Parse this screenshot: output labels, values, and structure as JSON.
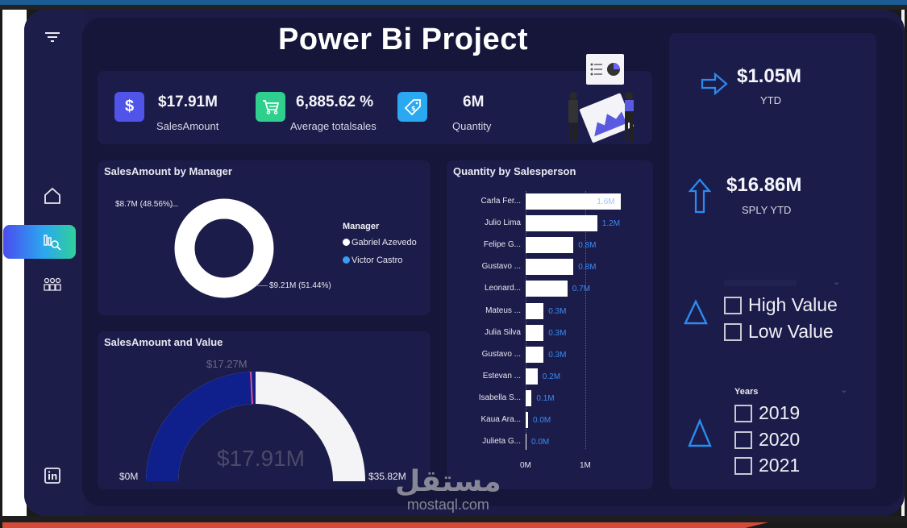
{
  "page": {
    "title": "Power Bi Project"
  },
  "colors": {
    "background": "#16163a",
    "card": "#1c1c4a",
    "accent_blue": "#3b8cf0",
    "donut_blue": "#3a9cf5",
    "gauge_navy": "#0f1f8c",
    "kpi_purple": "#5054e8",
    "kpi_green": "#2fcf8e",
    "kpi_cyan": "#2aa8f2"
  },
  "sidebar": {
    "items": [
      {
        "name": "filter",
        "icon": "filter-icon"
      },
      {
        "name": "home",
        "icon": "home-icon"
      },
      {
        "name": "analytics",
        "icon": "chart-search-icon",
        "active": true
      },
      {
        "name": "team",
        "icon": "users-icon"
      },
      {
        "name": "linkedin",
        "icon": "linkedin-icon"
      }
    ]
  },
  "kpis": [
    {
      "value": "$17.91M",
      "label": "SalesAmount",
      "icon": "dollar-icon"
    },
    {
      "value": "6,885.62 %",
      "label": "Average totalsales",
      "icon": "cart-icon"
    },
    {
      "value": "6M",
      "label": "Quantity",
      "icon": "price-tag-icon"
    }
  ],
  "side_kpis": [
    {
      "value": "$1.05M",
      "label": "YTD",
      "icon": "arrow-right-icon"
    },
    {
      "value": "$16.86M",
      "label": "SPLY YTD",
      "icon": "arrow-up-icon"
    }
  ],
  "value_slicer": {
    "options": [
      "High Value",
      "Low Value"
    ]
  },
  "years_slicer": {
    "title": "Years",
    "options": [
      "2019",
      "2020",
      "2021"
    ]
  },
  "donut": {
    "title": "SalesAmount by Manager",
    "legend_title": "Manager",
    "label_blue": "$8.7M (48.56%)",
    "label_white": "$9.21M (51.44%)",
    "legend": [
      "Gabriel Azevedo",
      "Victor Castro"
    ]
  },
  "gauge": {
    "title": "SalesAmount and Value",
    "value": "$17.91M",
    "min": "$0M",
    "max": "$35.82M",
    "target": "$17.27M"
  },
  "bars": {
    "title": "Quantity by Salesperson",
    "axis_ticks": [
      "0M",
      "1M"
    ]
  },
  "watermark": {
    "arabic": "مستقل",
    "latin": "mostaql.com"
  },
  "chart_data": [
    {
      "type": "pie",
      "title": "SalesAmount by Manager",
      "legend_title": "Manager",
      "categories": [
        "Gabriel Azevedo",
        "Victor Castro"
      ],
      "values": [
        9.21,
        8.7
      ],
      "percentages": [
        51.44,
        48.56
      ],
      "unit": "$M",
      "legend_position": "right"
    },
    {
      "type": "bar",
      "orientation": "horizontal",
      "title": "Quantity by Salesperson",
      "categories": [
        "Carla Fer...",
        "Julio Lima",
        "Felipe G...",
        "Gustavo ...",
        "Leonard...",
        "Mateus ...",
        "Julia Silva",
        "Gustavo ...",
        "Estevan ...",
        "Isabella S...",
        "Kaua Ara...",
        "Julieta G..."
      ],
      "values": [
        1.6,
        1.2,
        0.8,
        0.8,
        0.7,
        0.3,
        0.3,
        0.3,
        0.2,
        0.1,
        0.0,
        0.0
      ],
      "value_labels": [
        "1.6M",
        "1.2M",
        "0.8M",
        "0.8M",
        "0.7M",
        "0.3M",
        "0.3M",
        "0.3M",
        "0.2M",
        "0.1M",
        "0.0M",
        "0.0M"
      ],
      "xlabel": "",
      "ylabel": "",
      "xticks": [
        "0M",
        "1M"
      ],
      "unit": "M"
    },
    {
      "type": "gauge",
      "title": "SalesAmount and Value",
      "value": 17.91,
      "min": 0,
      "max": 35.82,
      "target": 17.27,
      "unit": "$M"
    }
  ]
}
